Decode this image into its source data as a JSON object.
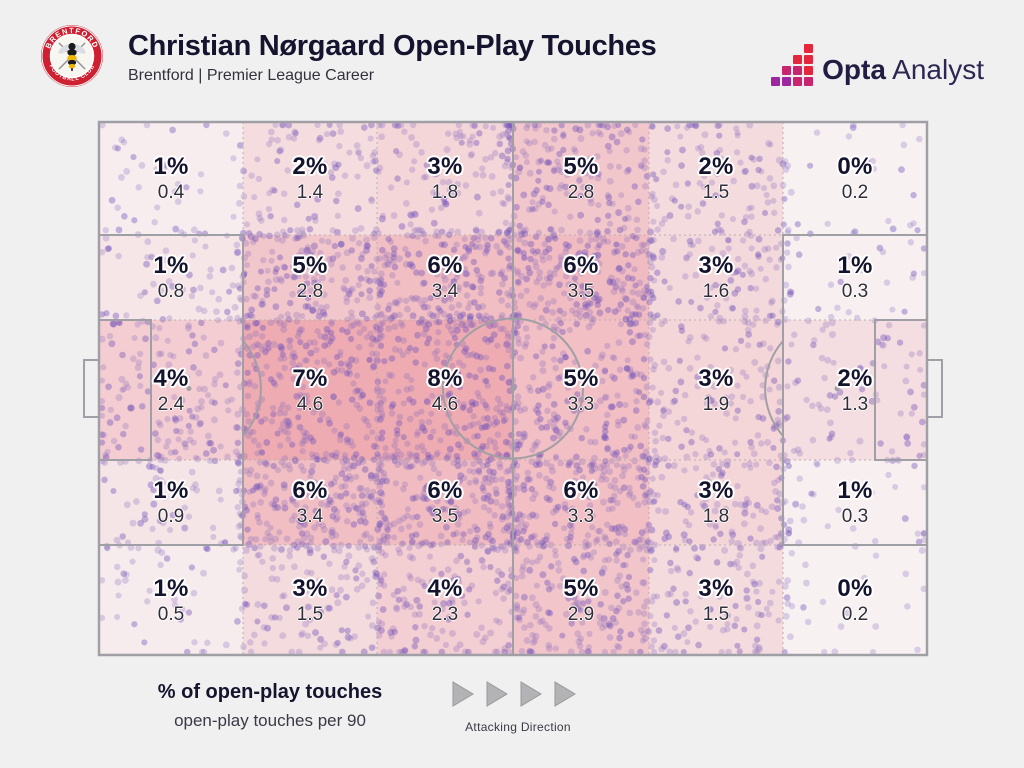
{
  "header": {
    "title": "Christian Nørgaard Open-Play Touches",
    "subtitle": "Brentford | Premier League Career",
    "badge_name": "Brentford Football Club",
    "brand_bold": "Opta",
    "brand_regular": "Analyst"
  },
  "legend": {
    "primary": "% of open-play touches",
    "secondary": "open-play touches per 90",
    "direction_label": "Attacking Direction"
  },
  "chart_data": {
    "type": "heatmap",
    "title": "Christian Nørgaard Open-Play Touches",
    "subtitle": "Brentford | Premier League Career",
    "layout": "football pitch, attacking left to right, 6 columns x 5 channels",
    "cols": 6,
    "rows": 5,
    "per90_max": 4.6,
    "cells": [
      [
        {
          "pct": "1%",
          "per90": "0.4",
          "pct_value": 1,
          "per90_value": 0.4
        },
        {
          "pct": "2%",
          "per90": "1.4",
          "pct_value": 2,
          "per90_value": 1.4
        },
        {
          "pct": "3%",
          "per90": "1.8",
          "pct_value": 3,
          "per90_value": 1.8
        },
        {
          "pct": "5%",
          "per90": "2.8",
          "pct_value": 5,
          "per90_value": 2.8
        },
        {
          "pct": "2%",
          "per90": "1.5",
          "pct_value": 2,
          "per90_value": 1.5
        },
        {
          "pct": "0%",
          "per90": "0.2",
          "pct_value": 0,
          "per90_value": 0.2
        }
      ],
      [
        {
          "pct": "1%",
          "per90": "0.8",
          "pct_value": 1,
          "per90_value": 0.8
        },
        {
          "pct": "5%",
          "per90": "2.8",
          "pct_value": 5,
          "per90_value": 2.8
        },
        {
          "pct": "6%",
          "per90": "3.4",
          "pct_value": 6,
          "per90_value": 3.4
        },
        {
          "pct": "6%",
          "per90": "3.5",
          "pct_value": 6,
          "per90_value": 3.5
        },
        {
          "pct": "3%",
          "per90": "1.6",
          "pct_value": 3,
          "per90_value": 1.6
        },
        {
          "pct": "1%",
          "per90": "0.3",
          "pct_value": 1,
          "per90_value": 0.3
        }
      ],
      [
        {
          "pct": "4%",
          "per90": "2.4",
          "pct_value": 4,
          "per90_value": 2.4
        },
        {
          "pct": "7%",
          "per90": "4.6",
          "pct_value": 7,
          "per90_value": 4.6
        },
        {
          "pct": "8%",
          "per90": "4.6",
          "pct_value": 8,
          "per90_value": 4.6
        },
        {
          "pct": "5%",
          "per90": "3.3",
          "pct_value": 5,
          "per90_value": 3.3
        },
        {
          "pct": "3%",
          "per90": "1.9",
          "pct_value": 3,
          "per90_value": 1.9
        },
        {
          "pct": "2%",
          "per90": "1.3",
          "pct_value": 2,
          "per90_value": 1.3
        }
      ],
      [
        {
          "pct": "1%",
          "per90": "0.9",
          "pct_value": 1,
          "per90_value": 0.9
        },
        {
          "pct": "6%",
          "per90": "3.4",
          "pct_value": 6,
          "per90_value": 3.4
        },
        {
          "pct": "6%",
          "per90": "3.5",
          "pct_value": 6,
          "per90_value": 3.5
        },
        {
          "pct": "6%",
          "per90": "3.3",
          "pct_value": 6,
          "per90_value": 3.3
        },
        {
          "pct": "3%",
          "per90": "1.8",
          "pct_value": 3,
          "per90_value": 1.8
        },
        {
          "pct": "1%",
          "per90": "0.3",
          "pct_value": 1,
          "per90_value": 0.3
        }
      ],
      [
        {
          "pct": "1%",
          "per90": "0.5",
          "pct_value": 1,
          "per90_value": 0.5
        },
        {
          "pct": "3%",
          "per90": "1.5",
          "pct_value": 3,
          "per90_value": 1.5
        },
        {
          "pct": "4%",
          "per90": "2.3",
          "pct_value": 4,
          "per90_value": 2.3
        },
        {
          "pct": "5%",
          "per90": "2.9",
          "pct_value": 5,
          "per90_value": 2.9
        },
        {
          "pct": "3%",
          "per90": "1.5",
          "pct_value": 3,
          "per90_value": 1.5
        },
        {
          "pct": "0%",
          "per90": "0.2",
          "pct_value": 0,
          "per90_value": 0.2
        }
      ]
    ]
  },
  "colors": {
    "page_bg": "#f1f0f1",
    "heat_min_rgb": [
      248,
      245,
      246
    ],
    "heat_max_rgb": [
      238,
      172,
      178
    ],
    "dot_rgb": [
      127,
      97,
      186
    ],
    "pitch_line": "#a19fa6",
    "grid_dotted": "#b9adaf",
    "navy": "#15142e",
    "badge_red": "#cf2031",
    "opta_red": "#e5273d",
    "opta_purple": "#9c27a0",
    "arrow_gray": "#b3b3b5"
  }
}
